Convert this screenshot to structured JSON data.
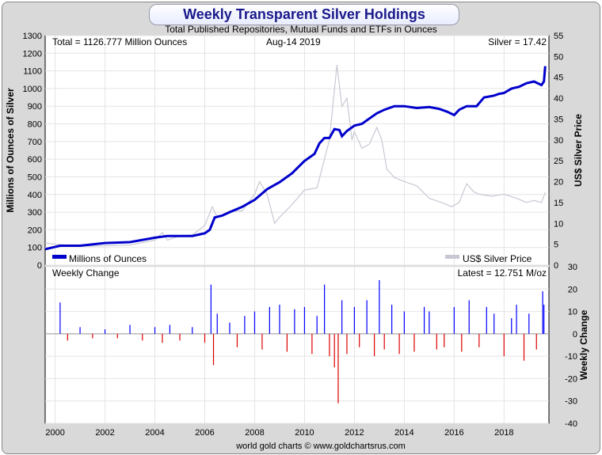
{
  "title": "Weekly Transparent Silver Holdings",
  "subtitle": "Total Published Repositories, Mutual Funds and ETFs in Ounces",
  "footer": "world gold charts © www.goldchartsrus.com",
  "chart_data": [
    {
      "type": "line",
      "info_left": "Total = 1126.777 Million Ounces",
      "info_date": "Aug-14  2019",
      "info_right": "Silver = 17.42",
      "ylabel": "Millions of Ounces of Silver",
      "y2label": "US$ Silver Price",
      "ylim": [
        0,
        1300
      ],
      "y2lim": [
        0,
        55
      ],
      "xlim": [
        1999.6,
        2019.8
      ],
      "grid": true,
      "yticks": [
        "1300",
        "1200",
        "1100",
        "1000",
        "900",
        "800",
        "700",
        "600",
        "500",
        "400",
        "300",
        "200",
        "100",
        "0"
      ],
      "y2ticks": [
        "55",
        "50",
        "45",
        "40",
        "35",
        "30",
        "25",
        "20",
        "15",
        "10",
        "5",
        "0"
      ],
      "xticks": [
        "2000",
        "2002",
        "2004",
        "2006",
        "2008",
        "2010",
        "2012",
        "2014",
        "2016",
        "2018"
      ],
      "series": [
        {
          "name": "Millions of Ounces",
          "color": "#0000cc",
          "axis": "left",
          "x": [
            1999.6,
            2000.2,
            2001.0,
            2002.0,
            2003.0,
            2004.0,
            2004.5,
            2005.5,
            2006.0,
            2006.2,
            2006.4,
            2006.7,
            2007.0,
            2007.5,
            2008.0,
            2008.5,
            2009.0,
            2009.5,
            2010.0,
            2010.4,
            2010.6,
            2010.8,
            2011.0,
            2011.2,
            2011.4,
            2011.5,
            2011.7,
            2012.0,
            2012.3,
            2012.6,
            2012.9,
            2013.2,
            2013.6,
            2014.0,
            2014.5,
            2015.0,
            2015.4,
            2015.7,
            2016.0,
            2016.2,
            2016.5,
            2016.9,
            2017.2,
            2017.6,
            2017.8,
            2018.0,
            2018.3,
            2018.6,
            2018.9,
            2019.2,
            2019.5,
            2019.6,
            2019.65
          ],
          "values": [
            90,
            110,
            110,
            125,
            130,
            155,
            165,
            165,
            180,
            200,
            270,
            280,
            300,
            330,
            370,
            430,
            470,
            520,
            590,
            630,
            690,
            720,
            720,
            770,
            765,
            730,
            760,
            790,
            800,
            830,
            860,
            880,
            900,
            900,
            890,
            895,
            885,
            870,
            850,
            880,
            900,
            900,
            950,
            960,
            970,
            975,
            1000,
            1010,
            1030,
            1040,
            1020,
            1040,
            1127
          ]
        },
        {
          "name": "US$ Silver Price",
          "color": "#c8c8d4",
          "axis": "right",
          "x": [
            1999.6,
            2000.0,
            2001.0,
            2002.0,
            2003.0,
            2004.0,
            2004.3,
            2004.5,
            2005.0,
            2005.5,
            2006.0,
            2006.3,
            2006.5,
            2007.0,
            2007.5,
            2008.0,
            2008.2,
            2008.5,
            2008.8,
            2009.0,
            2009.5,
            2010.0,
            2010.5,
            2011.0,
            2011.2,
            2011.3,
            2011.5,
            2011.7,
            2011.9,
            2012.0,
            2012.3,
            2012.6,
            2012.9,
            2013.1,
            2013.3,
            2013.6,
            2014.0,
            2014.5,
            2015.0,
            2015.5,
            2015.9,
            2016.2,
            2016.5,
            2016.8,
            2017.0,
            2017.5,
            2018.0,
            2018.5,
            2018.9,
            2019.2,
            2019.5,
            2019.65
          ],
          "values": [
            5.3,
            5.0,
            4.5,
            4.6,
            4.8,
            6.0,
            7.8,
            6.0,
            7.0,
            7.2,
            9.5,
            14,
            11.5,
            13,
            13,
            17,
            20,
            17,
            10,
            11.5,
            14.5,
            18,
            18.5,
            30,
            42,
            48,
            38,
            40,
            30,
            32,
            28,
            29,
            33,
            30,
            23,
            21,
            20,
            19,
            16,
            15,
            14,
            15,
            19.5,
            17.5,
            17,
            16.5,
            17,
            16,
            15,
            15.5,
            15,
            17.4
          ]
        }
      ],
      "legend": [
        "Millions of Ounces",
        "US$ Silver Price"
      ],
      "legend_placement": "bottom"
    },
    {
      "type": "bar",
      "title": "Weekly Change",
      "latest_label": "Latest = 12.751 M/oz",
      "ylabel": "Weekly Change",
      "ylim": [
        -40,
        30
      ],
      "yticks": [
        "30",
        "20",
        "10",
        "0",
        "-10",
        "-20",
        "-30",
        "-40"
      ],
      "zero_label": "0",
      "colors": {
        "positive": "#0000ff",
        "negative": "#dd0000",
        "zero": "#dd00dd"
      },
      "x": [
        2000.2,
        2000.5,
        2001.0,
        2001.5,
        2002.0,
        2002.5,
        2003.0,
        2003.5,
        2004.0,
        2004.3,
        2004.6,
        2005.0,
        2005.5,
        2006.0,
        2006.25,
        2006.35,
        2006.5,
        2007.0,
        2007.3,
        2007.6,
        2008.0,
        2008.3,
        2008.6,
        2009.0,
        2009.3,
        2009.6,
        2010.0,
        2010.3,
        2010.5,
        2010.8,
        2011.0,
        2011.2,
        2011.35,
        2011.5,
        2011.7,
        2012.0,
        2012.2,
        2012.5,
        2012.8,
        2013.0,
        2013.2,
        2013.5,
        2013.8,
        2014.0,
        2014.4,
        2014.8,
        2015.0,
        2015.3,
        2015.6,
        2016.0,
        2016.3,
        2016.6,
        2017.0,
        2017.3,
        2017.6,
        2018.0,
        2018.3,
        2018.5,
        2018.8,
        2019.0,
        2019.3,
        2019.55,
        2019.6
      ],
      "values": [
        14,
        -3,
        3,
        -2,
        2,
        -2,
        4,
        -3,
        3,
        -4,
        4,
        -3,
        3,
        -4,
        22,
        -14,
        9,
        5,
        -6,
        8,
        10,
        -7,
        12,
        13,
        -8,
        11,
        12,
        -9,
        8,
        22,
        -10,
        -15,
        -31,
        15,
        -9,
        12,
        -6,
        15,
        -10,
        24,
        -7,
        13,
        -9,
        10,
        -8,
        12,
        10,
        -7,
        -6,
        12,
        -8,
        15,
        -6,
        12,
        9,
        -10,
        7,
        13,
        -12,
        9,
        -7,
        19,
        13
      ]
    }
  ]
}
